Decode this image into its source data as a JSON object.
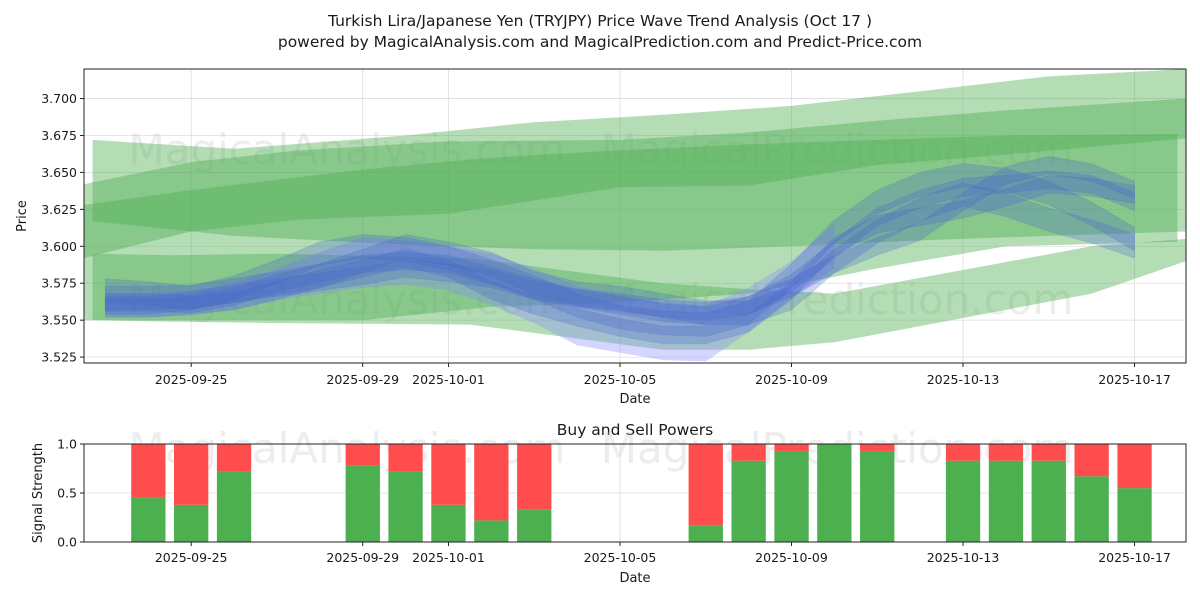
{
  "title_line1": "Turkish Lira/Japanese Yen (TRYJPY) Price Wave Trend Analysis (Oct 17 )",
  "title_line2": "powered by MagicalAnalysis.com and MagicalPrediction.com and Predict-Price.com",
  "watermarks": [
    "MagicalAnalysis.com",
    "MagicalPrediction.com"
  ],
  "colors": {
    "green_band": "#4caf50",
    "blue_wave": "#4466cc",
    "violet_wave": "#8888ff",
    "buy": "#4caf50",
    "sell": "#ff4d4d"
  },
  "chart_data": [
    {
      "type": "area",
      "title": "",
      "xlabel": "Date",
      "ylabel": "Price",
      "x_start": "2025-09-22",
      "x_range_days": [
        0.5,
        26.2
      ],
      "ylim": [
        3.521,
        3.72
      ],
      "x_tick_days": [
        3,
        7,
        9,
        13,
        17,
        21,
        25
      ],
      "x_tick_labels": [
        "2025-09-25",
        "2025-09-29",
        "2025-10-01",
        "2025-10-05",
        "2025-10-09",
        "2025-10-13",
        "2025-10-17"
      ],
      "y_ticks": [
        3.525,
        3.55,
        3.575,
        3.6,
        3.625,
        3.65,
        3.675,
        3.7
      ],
      "y_tick_labels": [
        "3.525",
        "3.550",
        "3.575",
        "3.600",
        "3.625",
        "3.650",
        "3.675",
        "3.700"
      ],
      "green_bands": [
        {
          "x": [
            0.7,
            2.5,
            5,
            9.5,
            14,
            16,
            18,
            24,
            26.2
          ],
          "upper": [
            3.595,
            3.594,
            3.595,
            3.592,
            3.575,
            3.571,
            3.568,
            3.6,
            3.605
          ],
          "lower": [
            3.55,
            3.549,
            3.548,
            3.547,
            3.53,
            3.53,
            3.535,
            3.568,
            3.59
          ]
        },
        {
          "x": [
            0.5,
            3,
            5.5,
            9,
            13,
            16,
            19,
            22,
            26.2
          ],
          "upper": [
            3.642,
            3.657,
            3.665,
            3.671,
            3.672,
            3.677,
            3.685,
            3.692,
            3.7
          ]
        },
        {
          "x": [
            0.5,
            3,
            5.5,
            9,
            13,
            16,
            19,
            22,
            26.2
          ],
          "lower": [
            3.592,
            3.61,
            3.618,
            3.622,
            3.64,
            3.641,
            3.655,
            3.662,
            3.673
          ]
        },
        {
          "x": [
            0.7,
            4,
            8,
            11,
            14,
            17,
            20,
            23,
            26.2
          ],
          "upper": [
            3.672,
            3.666,
            3.675,
            3.684,
            3.689,
            3.695,
            3.705,
            3.715,
            3.72
          ],
          "lower": [
            3.617,
            3.607,
            3.601,
            3.598,
            3.597,
            3.6,
            3.604,
            3.607,
            3.61
          ]
        },
        {
          "x": [
            0.5,
            3,
            7,
            10,
            13,
            16,
            19,
            22,
            26.0
          ],
          "upper": [
            3.628,
            3.638,
            3.652,
            3.66,
            3.665,
            3.669,
            3.672,
            3.675,
            3.676
          ],
          "lower": [
            3.55,
            3.55,
            3.55,
            3.559,
            3.562,
            3.568,
            3.585,
            3.6,
            3.603
          ]
        }
      ],
      "wave_centers": [
        {
          "x": [
            1,
            2,
            3,
            4,
            5,
            6,
            7,
            8,
            9,
            10,
            11,
            12,
            13,
            14,
            15,
            16,
            17,
            18,
            19,
            20,
            21,
            22,
            23,
            24,
            25
          ],
          "y": [
            3.562,
            3.562,
            3.561,
            3.566,
            3.575,
            3.582,
            3.588,
            3.59,
            3.588,
            3.58,
            3.572,
            3.565,
            3.56,
            3.555,
            3.553,
            3.56,
            3.575,
            3.598,
            3.62,
            3.632,
            3.64,
            3.642,
            3.645,
            3.642,
            3.63
          ]
        },
        {
          "x": [
            1,
            2,
            3,
            4,
            5,
            6,
            7,
            8,
            9,
            10,
            11,
            12,
            13,
            14,
            15,
            16,
            17,
            18,
            19,
            20,
            21,
            22,
            23,
            24,
            25
          ],
          "y": [
            3.57,
            3.568,
            3.565,
            3.572,
            3.583,
            3.595,
            3.6,
            3.598,
            3.592,
            3.583,
            3.572,
            3.56,
            3.552,
            3.548,
            3.547,
            3.555,
            3.58,
            3.61,
            3.63,
            3.642,
            3.648,
            3.645,
            3.636,
            3.622,
            3.605
          ]
        },
        {
          "x": [
            1,
            2,
            3,
            4,
            5,
            6,
            7,
            8,
            9,
            10,
            11,
            12,
            13,
            14,
            15,
            16,
            17,
            18,
            19,
            20,
            21,
            22,
            23,
            24,
            25
          ],
          "y": [
            3.558,
            3.558,
            3.56,
            3.563,
            3.57,
            3.578,
            3.585,
            3.592,
            3.585,
            3.57,
            3.56,
            3.552,
            3.545,
            3.54,
            3.54,
            3.548,
            3.57,
            3.6,
            3.615,
            3.62,
            3.625,
            3.633,
            3.642,
            3.64,
            3.635
          ]
        },
        {
          "x": [
            1,
            2,
            3,
            4,
            5,
            6,
            7,
            8,
            9,
            10,
            11,
            12,
            13,
            14,
            15,
            16,
            17,
            18,
            19,
            20,
            21,
            22,
            23,
            24,
            25
          ],
          "y": [
            3.565,
            3.565,
            3.566,
            3.57,
            3.575,
            3.58,
            3.59,
            3.6,
            3.595,
            3.588,
            3.575,
            3.568,
            3.565,
            3.56,
            3.555,
            3.555,
            3.565,
            3.59,
            3.61,
            3.625,
            3.635,
            3.628,
            3.618,
            3.61,
            3.6
          ]
        },
        {
          "x": [
            1,
            2,
            3,
            4,
            5,
            6,
            7,
            8,
            9,
            10,
            11,
            12,
            13,
            14,
            15,
            16,
            17,
            18,
            19,
            20,
            21,
            22,
            23,
            24,
            25
          ],
          "y": [
            3.56,
            3.56,
            3.563,
            3.568,
            3.572,
            3.576,
            3.58,
            3.585,
            3.582,
            3.578,
            3.57,
            3.565,
            3.562,
            3.558,
            3.556,
            3.56,
            3.572,
            3.588,
            3.6,
            3.61,
            3.63,
            3.648,
            3.655,
            3.65,
            3.638
          ]
        }
      ],
      "violet_wave": {
        "x": [
          1,
          2,
          3,
          4,
          5,
          6,
          7,
          8,
          9,
          10,
          11,
          12,
          13,
          14,
          15,
          16,
          17,
          18
        ],
        "upper": [
          3.568,
          3.568,
          3.57,
          3.575,
          3.585,
          3.596,
          3.606,
          3.604,
          3.6,
          3.595,
          3.585,
          3.573,
          3.567,
          3.562,
          3.56,
          3.572,
          3.59,
          3.615
        ],
        "lower": [
          3.552,
          3.552,
          3.553,
          3.557,
          3.563,
          3.568,
          3.572,
          3.574,
          3.57,
          3.56,
          3.548,
          3.533,
          3.528,
          3.523,
          3.522,
          3.542,
          3.565,
          3.585
        ]
      }
    },
    {
      "type": "bar",
      "title": "Buy and Sell Powers",
      "xlabel": "Date",
      "ylabel": "Signal Strength",
      "ylim": [
        0,
        1
      ],
      "y_ticks": [
        0,
        0.5,
        1
      ],
      "y_tick_labels": [
        "0.0",
        "0.5",
        "1.0"
      ],
      "x_tick_labels": [
        "2025-09-25",
        "2025-09-29",
        "2025-10-01",
        "2025-10-05",
        "2025-10-09",
        "2025-10-13",
        "2025-10-17"
      ],
      "series": [
        {
          "name": "Buy",
          "days": [
            2,
            3,
            4,
            7,
            8,
            9,
            10,
            11,
            15,
            16,
            17,
            18,
            19,
            21,
            22,
            23,
            24,
            25
          ],
          "values": [
            0.45,
            0.38,
            0.72,
            0.78,
            0.72,
            0.38,
            0.22,
            0.33,
            0.17,
            0.83,
            0.93,
            1.0,
            0.93,
            0.83,
            0.83,
            0.83,
            0.67,
            0.55
          ]
        },
        {
          "name": "Sell",
          "days": [
            2,
            3,
            4,
            7,
            8,
            9,
            10,
            11,
            15,
            16,
            17,
            18,
            19,
            21,
            22,
            23,
            24,
            25
          ],
          "values": [
            0.55,
            0.62,
            0.28,
            0.22,
            0.28,
            0.62,
            0.78,
            0.67,
            0.83,
            0.17,
            0.07,
            0.0,
            0.07,
            0.17,
            0.17,
            0.17,
            0.33,
            0.45
          ]
        }
      ]
    }
  ]
}
